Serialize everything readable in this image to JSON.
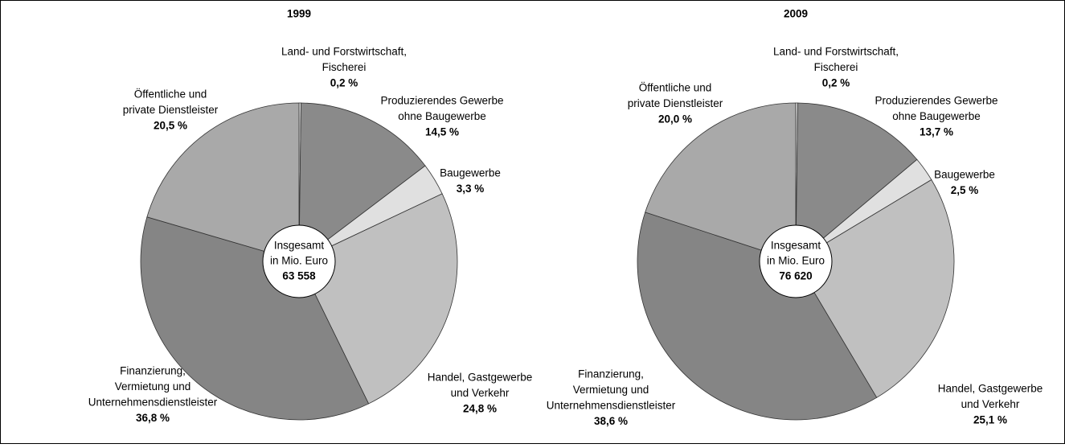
{
  "chart_data": [
    {
      "type": "pie",
      "title": "1999",
      "categories": [
        [
          "Land- und Forstwirtschaft,",
          "Fischerei"
        ],
        [
          "Produzierendes Gewerbe",
          "ohne Baugewerbe"
        ],
        [
          "Baugewerbe"
        ],
        [
          "Handel, Gastgewerbe",
          "und Verkehr"
        ],
        [
          "Finanzierung,",
          "Vermietung und",
          "Unternehmensdienstleister"
        ],
        [
          "Öffentliche und",
          "private Dienstleister"
        ]
      ],
      "values": [
        0.2,
        14.5,
        3.3,
        24.8,
        36.8,
        20.5
      ],
      "value_labels": [
        "0,2 %",
        "14,5 %",
        "3,3 %",
        "24,8 %",
        "36,8 %",
        "20,5 %"
      ],
      "colors": [
        "#e4e4e4",
        "#8a8a8a",
        "#e0e0e0",
        "#c0c0c0",
        "#858585",
        "#a9a9a9"
      ],
      "center_text": [
        "Insgesamt",
        "in Mio. Euro"
      ],
      "total": "63 558"
    },
    {
      "type": "pie",
      "title": "2009",
      "categories": [
        [
          "Land- und Forstwirtschaft,",
          "Fischerei"
        ],
        [
          "Produzierendes Gewerbe",
          "ohne Baugewerbe"
        ],
        [
          "Baugewerbe"
        ],
        [
          "Handel, Gastgewerbe",
          "und Verkehr"
        ],
        [
          "Finanzierung,",
          "Vermietung und",
          "Unternehmensdienstleister"
        ],
        [
          "Öffentliche und",
          "private Dienstleister"
        ]
      ],
      "values": [
        0.2,
        13.7,
        2.5,
        25.1,
        38.6,
        20.0
      ],
      "value_labels": [
        "0,2 %",
        "13,7 %",
        "2,5 %",
        "25,1 %",
        "38,6 %",
        "20,0 %"
      ],
      "colors": [
        "#e4e4e4",
        "#8a8a8a",
        "#e0e0e0",
        "#c0c0c0",
        "#858585",
        "#a9a9a9"
      ],
      "center_text": [
        "Insgesamt",
        "in Mio. Euro"
      ],
      "total": "76 620"
    }
  ]
}
